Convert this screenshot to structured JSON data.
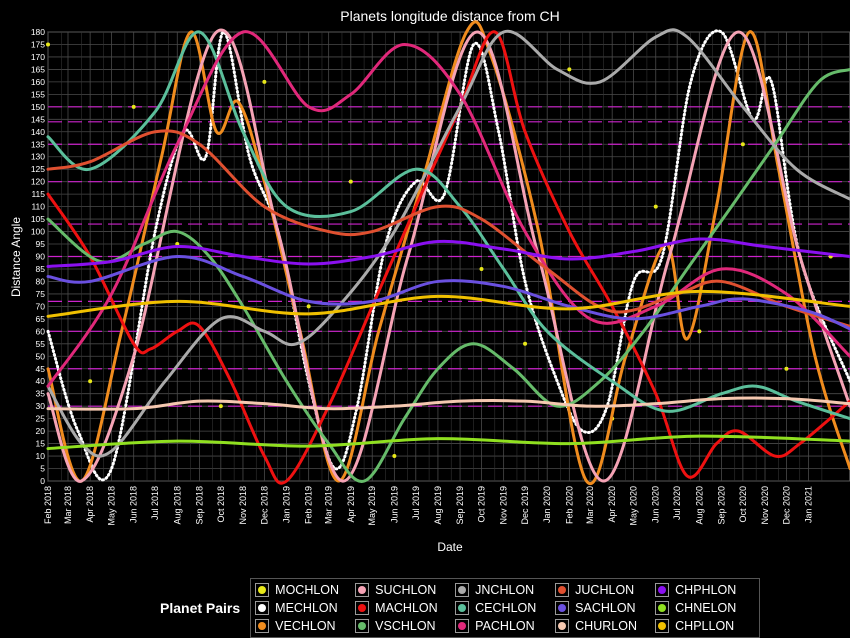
{
  "chart_data": {
    "type": "line",
    "title": "Planets longitude distance from CH",
    "xlabel": "Date",
    "ylabel": "Distance Angle",
    "ylim": [
      0,
      180
    ],
    "xlim": [
      "2018-02-01",
      "2021-02-28"
    ],
    "y_ticks": [
      0,
      5,
      10,
      15,
      20,
      25,
      30,
      35,
      40,
      45,
      50,
      55,
      60,
      65,
      70,
      75,
      80,
      85,
      90,
      95,
      100,
      105,
      110,
      115,
      120,
      125,
      130,
      135,
      140,
      145,
      150,
      155,
      160,
      165,
      170,
      175,
      180
    ],
    "x_ticks": [
      "Feb 2018",
      "Mar 2018",
      "Apr 2018",
      "May 2018",
      "Jun 2018",
      "Jul 2018",
      "Aug 2018",
      "Sep 2018",
      "Oct 2018",
      "Nov 2018",
      "Dec 2018",
      "Jan 2019",
      "Feb 2019",
      "Mar 2019",
      "Apr 2019",
      "May 2019",
      "Jun 2019",
      "Jul 2019",
      "Aug 2019",
      "Sep 2019",
      "Oct 2019",
      "Nov 2019",
      "Dec 2019",
      "Jan 2020",
      "Feb 2020",
      "Mar 2020",
      "Apr 2020",
      "May 2020",
      "Jun 2020",
      "Jul 2020",
      "Aug 2020",
      "Sep 2020",
      "Oct 2020",
      "Nov 2020",
      "Dec 2020",
      "Jan 2021"
    ],
    "highlight_lines": [
      30,
      45,
      60,
      72,
      90,
      103,
      120,
      135,
      144,
      150
    ],
    "legend_title": "Planet Pairs",
    "legend_position": "bottom",
    "series": [
      {
        "name": "MOCHLON",
        "color": "#e8e81a",
        "style": "scatter",
        "x": [
          "2018-02-01",
          "2018-04-01",
          "2018-06-01",
          "2018-08-01",
          "2018-10-01",
          "2018-12-01",
          "2019-02-01",
          "2019-04-01",
          "2019-06-01",
          "2019-08-01",
          "2019-10-01",
          "2019-12-01",
          "2020-02-01",
          "2020-04-01",
          "2020-06-01",
          "2020-08-01",
          "2020-10-01",
          "2020-12-01",
          "2021-02-01"
        ],
        "y": [
          175,
          40,
          150,
          95,
          30,
          160,
          70,
          120,
          10,
          140,
          85,
          55,
          165,
          25,
          110,
          60,
          135,
          45,
          90
        ]
      },
      {
        "name": "MECHLON",
        "color": "#ffffff",
        "style": "dotted",
        "x": [
          "2018-02-01",
          "2018-03-15",
          "2018-05-01",
          "2018-07-01",
          "2018-08-10",
          "2018-09-10",
          "2018-10-05",
          "2018-11-10",
          "2018-12-20",
          "2019-02-01",
          "2019-03-10",
          "2019-04-10",
          "2019-05-20",
          "2019-07-01",
          "2019-08-10",
          "2019-09-20",
          "2019-10-25",
          "2019-12-01",
          "2020-01-15",
          "2020-02-20",
          "2020-03-25",
          "2020-05-01",
          "2020-06-10",
          "2020-07-20",
          "2020-09-01",
          "2020-10-15",
          "2020-11-10",
          "2020-12-20",
          "2021-02-28"
        ],
        "y": [
          60,
          20,
          5,
          100,
          140,
          130,
          180,
          130,
          100,
          40,
          5,
          30,
          95,
          120,
          115,
          175,
          140,
          80,
          40,
          20,
          30,
          80,
          90,
          160,
          180,
          145,
          160,
          90,
          40
        ]
      },
      {
        "name": "VECHLON",
        "color": "#f08c1e",
        "style": "solid",
        "x": [
          "2018-02-01",
          "2018-03-20",
          "2018-05-15",
          "2018-07-10",
          "2018-08-20",
          "2018-09-25",
          "2018-10-25",
          "2018-12-01",
          "2019-01-20",
          "2019-03-15",
          "2019-05-10",
          "2019-07-10",
          "2019-09-10",
          "2019-10-15",
          "2019-12-20",
          "2020-02-25",
          "2020-04-20",
          "2020-06-15",
          "2020-07-15",
          "2020-08-25",
          "2020-10-10",
          "2020-11-20",
          "2021-01-10",
          "2021-02-28"
        ],
        "y": [
          45,
          0,
          60,
          130,
          180,
          140,
          152,
          120,
          60,
          0,
          60,
          120,
          180,
          170,
          100,
          0,
          50,
          95,
          57,
          110,
          180,
          125,
          50,
          5
        ]
      },
      {
        "name": "SUCHLON",
        "color": "#f5a3b5",
        "style": "solid",
        "x": [
          "2018-02-01",
          "2018-03-20",
          "2018-06-01",
          "2018-09-25",
          "2018-12-20",
          "2019-03-20",
          "2019-06-20",
          "2019-09-25",
          "2019-12-20",
          "2020-03-20",
          "2020-06-20",
          "2020-09-25",
          "2020-12-20",
          "2021-02-28"
        ],
        "y": [
          35,
          0,
          50,
          180,
          100,
          0,
          90,
          180,
          90,
          0,
          90,
          180,
          90,
          30
        ]
      },
      {
        "name": "MACHLON",
        "color": "#ee1111",
        "style": "solid",
        "x": [
          "2018-02-01",
          "2018-04-01",
          "2018-06-01",
          "2018-06-25",
          "2018-08-01",
          "2018-09-01",
          "2018-10-15",
          "2018-12-01",
          "2019-01-01",
          "2019-03-01",
          "2019-05-01",
          "2019-07-01",
          "2019-09-01",
          "2019-10-20",
          "2019-12-01",
          "2020-02-01",
          "2020-04-01",
          "2020-06-01",
          "2020-07-15",
          "2020-08-25",
          "2020-09-25",
          "2020-11-15",
          "2020-12-20",
          "2021-02-28"
        ],
        "y": [
          115,
          90,
          55,
          53,
          60,
          62,
          40,
          10,
          0,
          30,
          70,
          110,
          150,
          180,
          140,
          100,
          70,
          35,
          2,
          15,
          20,
          10,
          15,
          32
        ]
      },
      {
        "name": "VSCHLON",
        "color": "#66bb6a",
        "style": "solid",
        "x": [
          "2018-02-01",
          "2018-04-15",
          "2018-06-15",
          "2018-08-01",
          "2018-09-15",
          "2018-11-01",
          "2019-01-01",
          "2019-03-01",
          "2019-04-20",
          "2019-06-15",
          "2019-08-01",
          "2019-09-20",
          "2019-11-15",
          "2020-01-15",
          "2020-03-15",
          "2020-05-15",
          "2020-07-15",
          "2020-09-15",
          "2020-11-15",
          "2021-01-15",
          "2021-02-28"
        ],
        "y": [
          105,
          88,
          95,
          100,
          90,
          70,
          40,
          15,
          0,
          25,
          45,
          55,
          45,
          30,
          40,
          60,
          85,
          110,
          135,
          160,
          165
        ]
      },
      {
        "name": "JNCHLON",
        "color": "#aaaaaa",
        "style": "solid",
        "x": [
          "2018-02-01",
          "2018-03-20",
          "2018-05-01",
          "2018-07-15",
          "2018-10-01",
          "2018-12-01",
          "2019-01-15",
          "2019-03-15",
          "2019-06-01",
          "2019-09-01",
          "2019-11-01",
          "2020-01-15",
          "2020-03-15",
          "2020-06-01",
          "2020-07-15",
          "2020-10-01",
          "2020-12-15",
          "2021-02-28"
        ],
        "y": [
          38,
          15,
          12,
          40,
          65,
          60,
          55,
          70,
          100,
          150,
          180,
          165,
          160,
          178,
          178,
          150,
          125,
          113
        ]
      },
      {
        "name": "CECHLON",
        "color": "#5bbf9b",
        "style": "solid",
        "x": [
          "2018-02-01",
          "2018-04-01",
          "2018-07-01",
          "2018-09-01",
          "2018-11-01",
          "2019-01-01",
          "2019-04-01",
          "2019-07-01",
          "2019-09-01",
          "2019-11-01",
          "2020-01-01",
          "2020-04-01",
          "2020-06-15",
          "2020-09-01",
          "2020-10-20",
          "2020-12-15",
          "2021-02-28"
        ],
        "y": [
          138,
          125,
          148,
          180,
          140,
          110,
          108,
          125,
          110,
          85,
          60,
          40,
          28,
          35,
          38,
          32,
          25
        ]
      },
      {
        "name": "PACHLON",
        "color": "#e0287a",
        "style": "solid",
        "x": [
          "2018-02-01",
          "2018-05-01",
          "2018-08-01",
          "2018-11-01",
          "2019-02-01",
          "2019-04-01",
          "2019-06-15",
          "2019-09-01",
          "2019-12-01",
          "2020-03-01",
          "2020-06-01",
          "2020-09-01",
          "2020-12-01",
          "2021-02-28"
        ],
        "y": [
          38,
          75,
          135,
          180,
          150,
          155,
          175,
          155,
          100,
          65,
          70,
          85,
          75,
          50
        ]
      },
      {
        "name": "JUCHLON",
        "color": "#e05030",
        "style": "solid",
        "x": [
          "2018-02-01",
          "2018-04-01",
          "2018-07-01",
          "2018-09-01",
          "2018-12-01",
          "2019-03-01",
          "2019-05-01",
          "2019-08-01",
          "2019-10-01",
          "2020-01-01",
          "2020-04-01",
          "2020-07-01",
          "2020-09-01",
          "2020-12-01",
          "2021-02-28"
        ],
        "y": [
          125,
          128,
          140,
          135,
          110,
          100,
          100,
          110,
          105,
          85,
          68,
          75,
          80,
          70,
          62
        ]
      },
      {
        "name": "SACHLON",
        "color": "#6a50e0",
        "style": "solid",
        "x": [
          "2018-02-01",
          "2018-04-01",
          "2018-08-01",
          "2018-11-01",
          "2019-02-01",
          "2019-05-01",
          "2019-08-01",
          "2019-11-01",
          "2020-02-01",
          "2020-05-01",
          "2020-08-01",
          "2020-10-01",
          "2021-01-01",
          "2021-02-28"
        ],
        "y": [
          82,
          80,
          90,
          82,
          72,
          72,
          80,
          78,
          70,
          65,
          70,
          73,
          68,
          61
        ]
      },
      {
        "name": "CHURLON",
        "color": "#f5c8b0",
        "style": "solid",
        "x": [
          "2018-02-01",
          "2018-06-01",
          "2018-09-01",
          "2018-12-01",
          "2019-03-01",
          "2019-06-01",
          "2019-09-01",
          "2019-12-01",
          "2020-03-01",
          "2020-06-01",
          "2020-09-01",
          "2020-12-01",
          "2021-02-28"
        ],
        "y": [
          29,
          29,
          32,
          31,
          29,
          30,
          32,
          32,
          30,
          31,
          33,
          33,
          31
        ]
      },
      {
        "name": "CHPHLON",
        "color": "#8a10f0",
        "style": "solid",
        "x": [
          "2018-02-01",
          "2018-05-01",
          "2018-08-01",
          "2018-11-01",
          "2019-02-01",
          "2019-05-01",
          "2019-08-01",
          "2019-11-01",
          "2020-02-01",
          "2020-05-01",
          "2020-08-01",
          "2020-11-01",
          "2021-02-28"
        ],
        "y": [
          86,
          88,
          94,
          90,
          87,
          90,
          96,
          93,
          89,
          92,
          97,
          94,
          90
        ]
      },
      {
        "name": "CHNELON",
        "color": "#90e020",
        "style": "solid",
        "x": [
          "2018-02-01",
          "2018-08-01",
          "2019-02-01",
          "2019-08-01",
          "2020-02-01",
          "2020-08-01",
          "2021-02-28"
        ],
        "y": [
          13,
          16,
          14,
          17,
          15,
          18,
          16
        ]
      },
      {
        "name": "CHPLLON",
        "color": "#f0c000",
        "style": "solid",
        "x": [
          "2018-02-01",
          "2018-08-01",
          "2019-02-01",
          "2019-08-01",
          "2020-02-01",
          "2020-08-01",
          "2021-02-28"
        ],
        "y": [
          66,
          72,
          67,
          74,
          69,
          76,
          70
        ]
      }
    ]
  }
}
